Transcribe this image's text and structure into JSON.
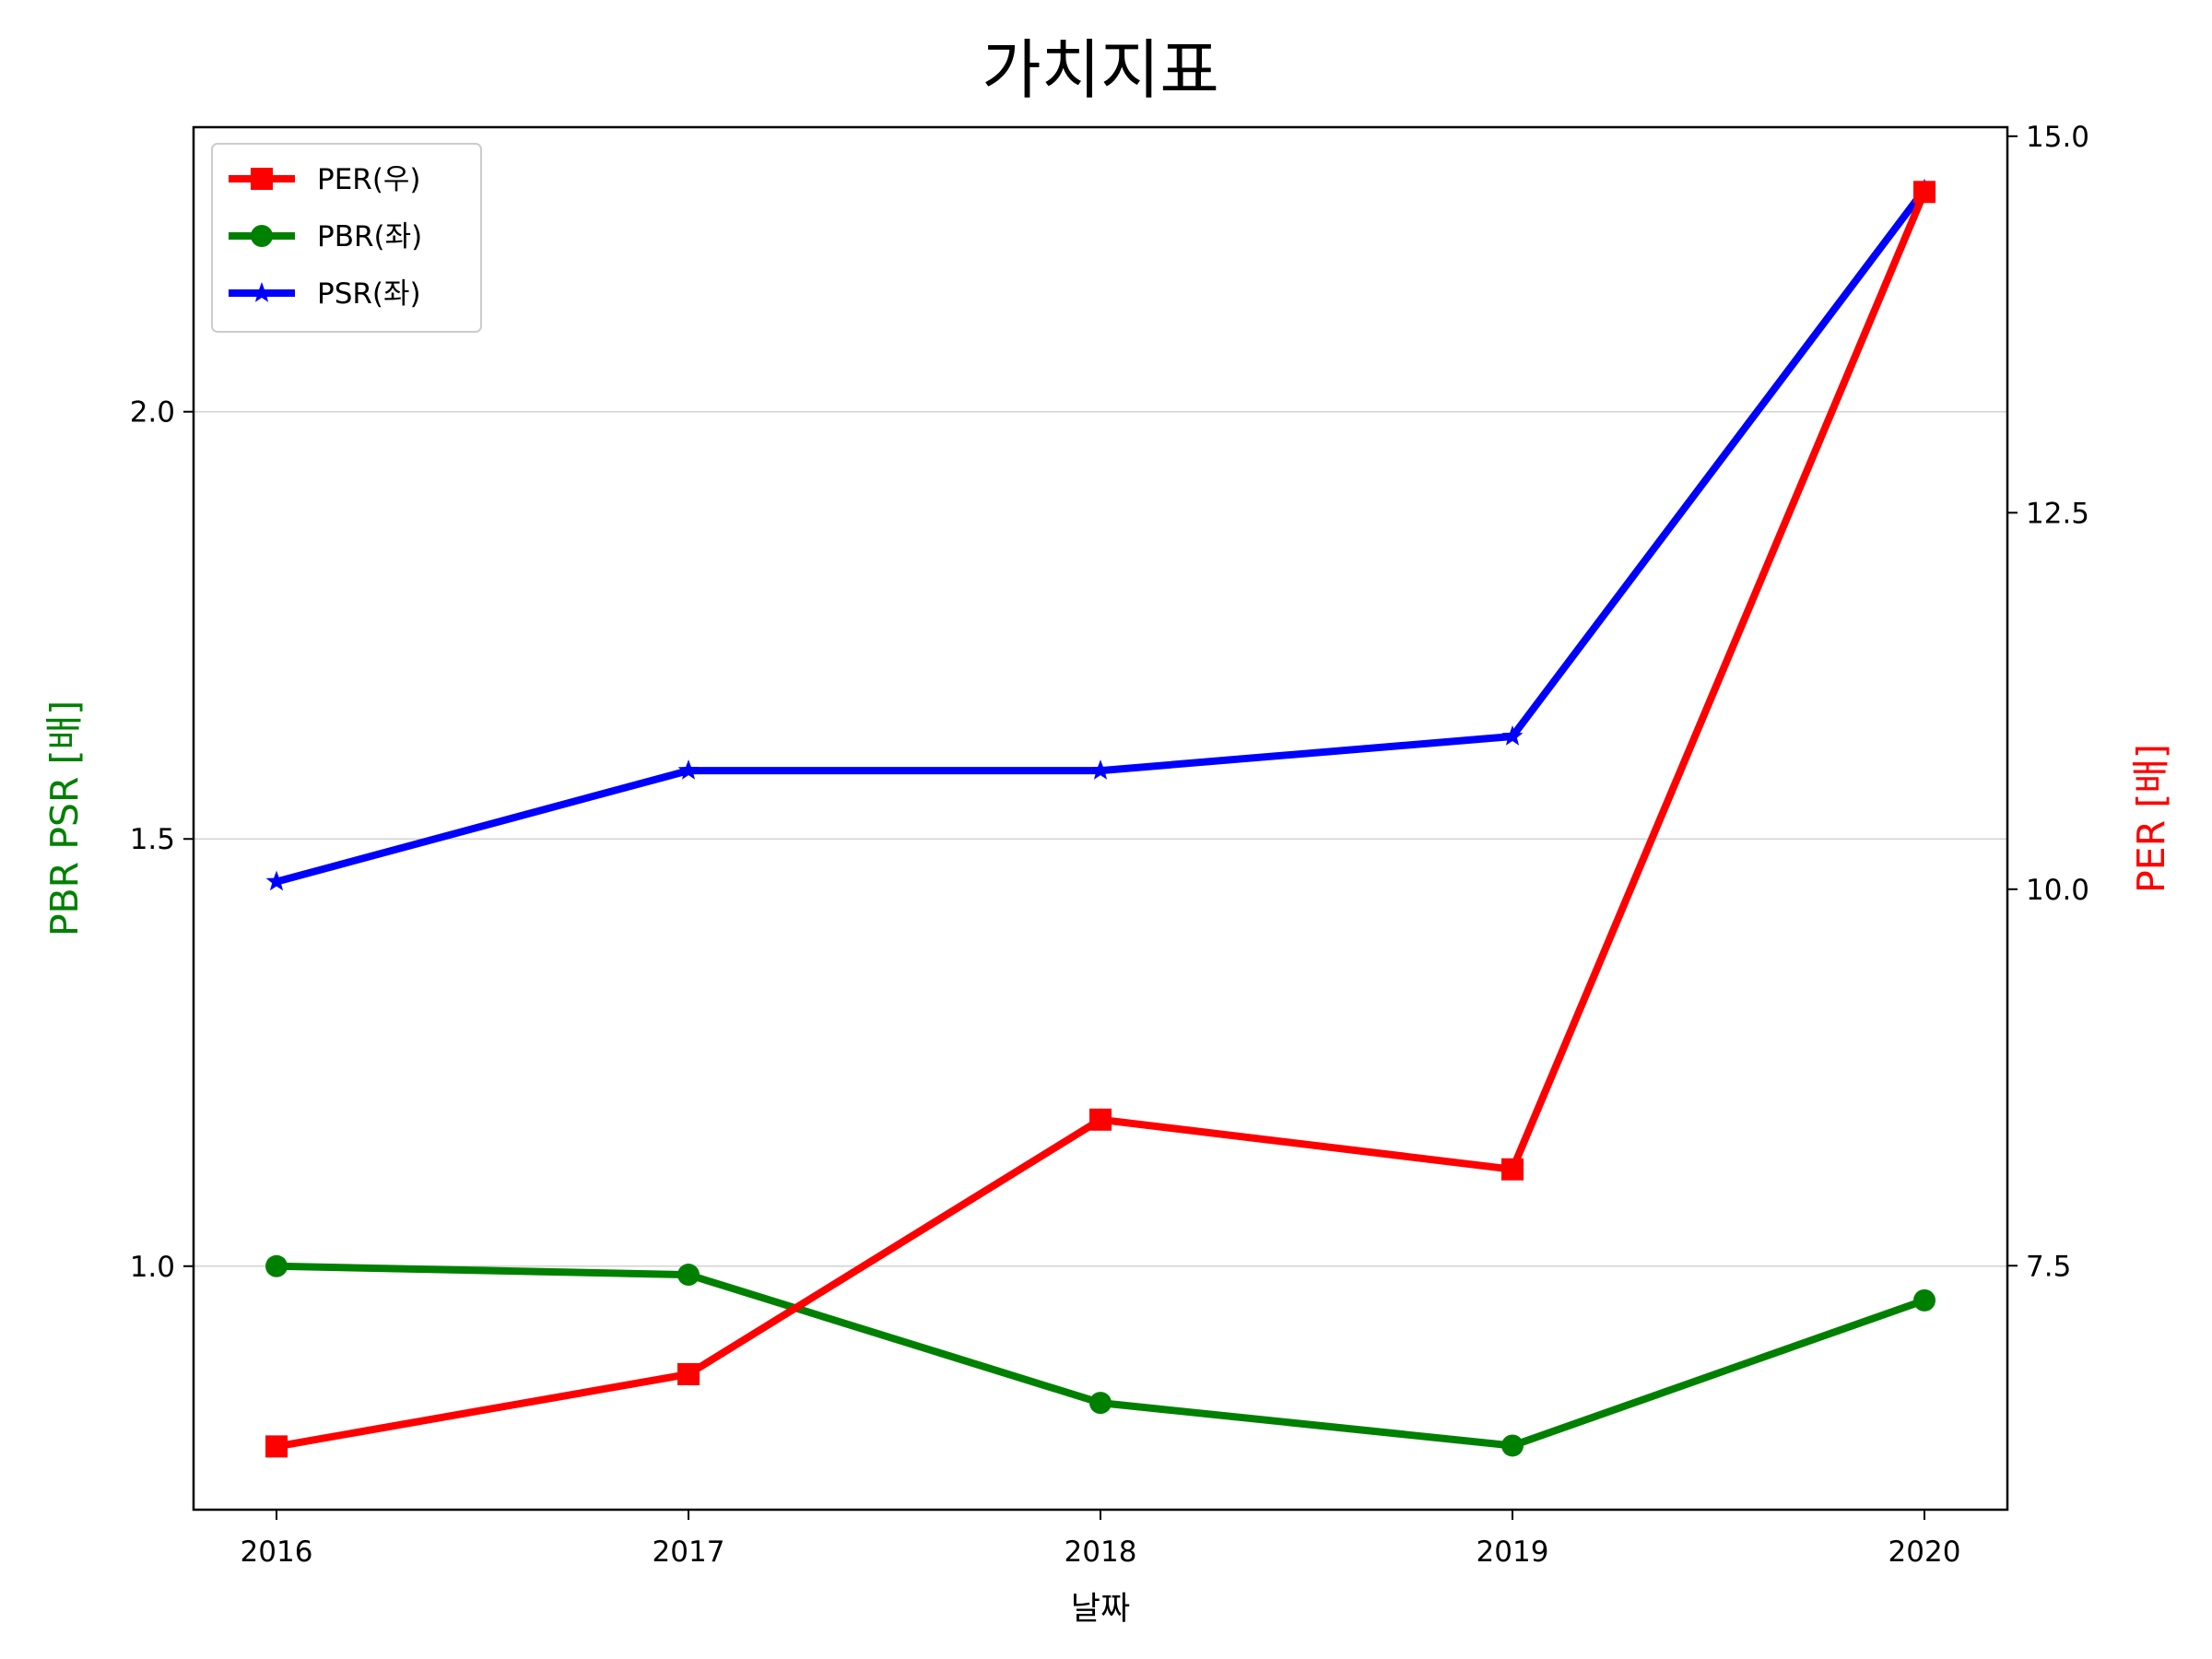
{
  "chart_data": {
    "type": "line",
    "title": "가치지표",
    "xlabel": "날짜",
    "ylabel_left": "PBR PSR [배]",
    "ylabel_right": "PER [배]",
    "x": [
      "2016",
      "2017",
      "2018",
      "2019",
      "2020"
    ],
    "xticks": [
      "2016",
      "2017",
      "2018",
      "2019",
      "2020"
    ],
    "ylim_left": [
      0.715,
      2.333
    ],
    "yticks_left": [
      "1.0",
      "1.5",
      "2.0"
    ],
    "ylim_right": [
      5.88,
      15.06
    ],
    "yticks_right": [
      "7.5",
      "10.0",
      "12.5",
      "15.0"
    ],
    "grid": "horizontal, left axis",
    "legend_position": "upper-left",
    "series": [
      {
        "name": "PER(우)",
        "axis": "right",
        "marker": "square",
        "color": "#ff0000",
        "values": [
          6.3,
          6.78,
          8.47,
          8.14,
          14.63
        ]
      },
      {
        "name": "PBR(좌)",
        "axis": "left",
        "marker": "circle",
        "color": "#008000",
        "values": [
          1.0,
          0.99,
          0.84,
          0.79,
          0.96
        ]
      },
      {
        "name": "PSR(좌)",
        "axis": "left",
        "marker": "star",
        "color": "#0000ff",
        "values": [
          1.45,
          1.58,
          1.58,
          1.62,
          2.26
        ]
      }
    ],
    "colors": {
      "left_axis_label": "#008000",
      "right_axis_label": "#ff0000",
      "grid": "#d3d3d3"
    }
  }
}
